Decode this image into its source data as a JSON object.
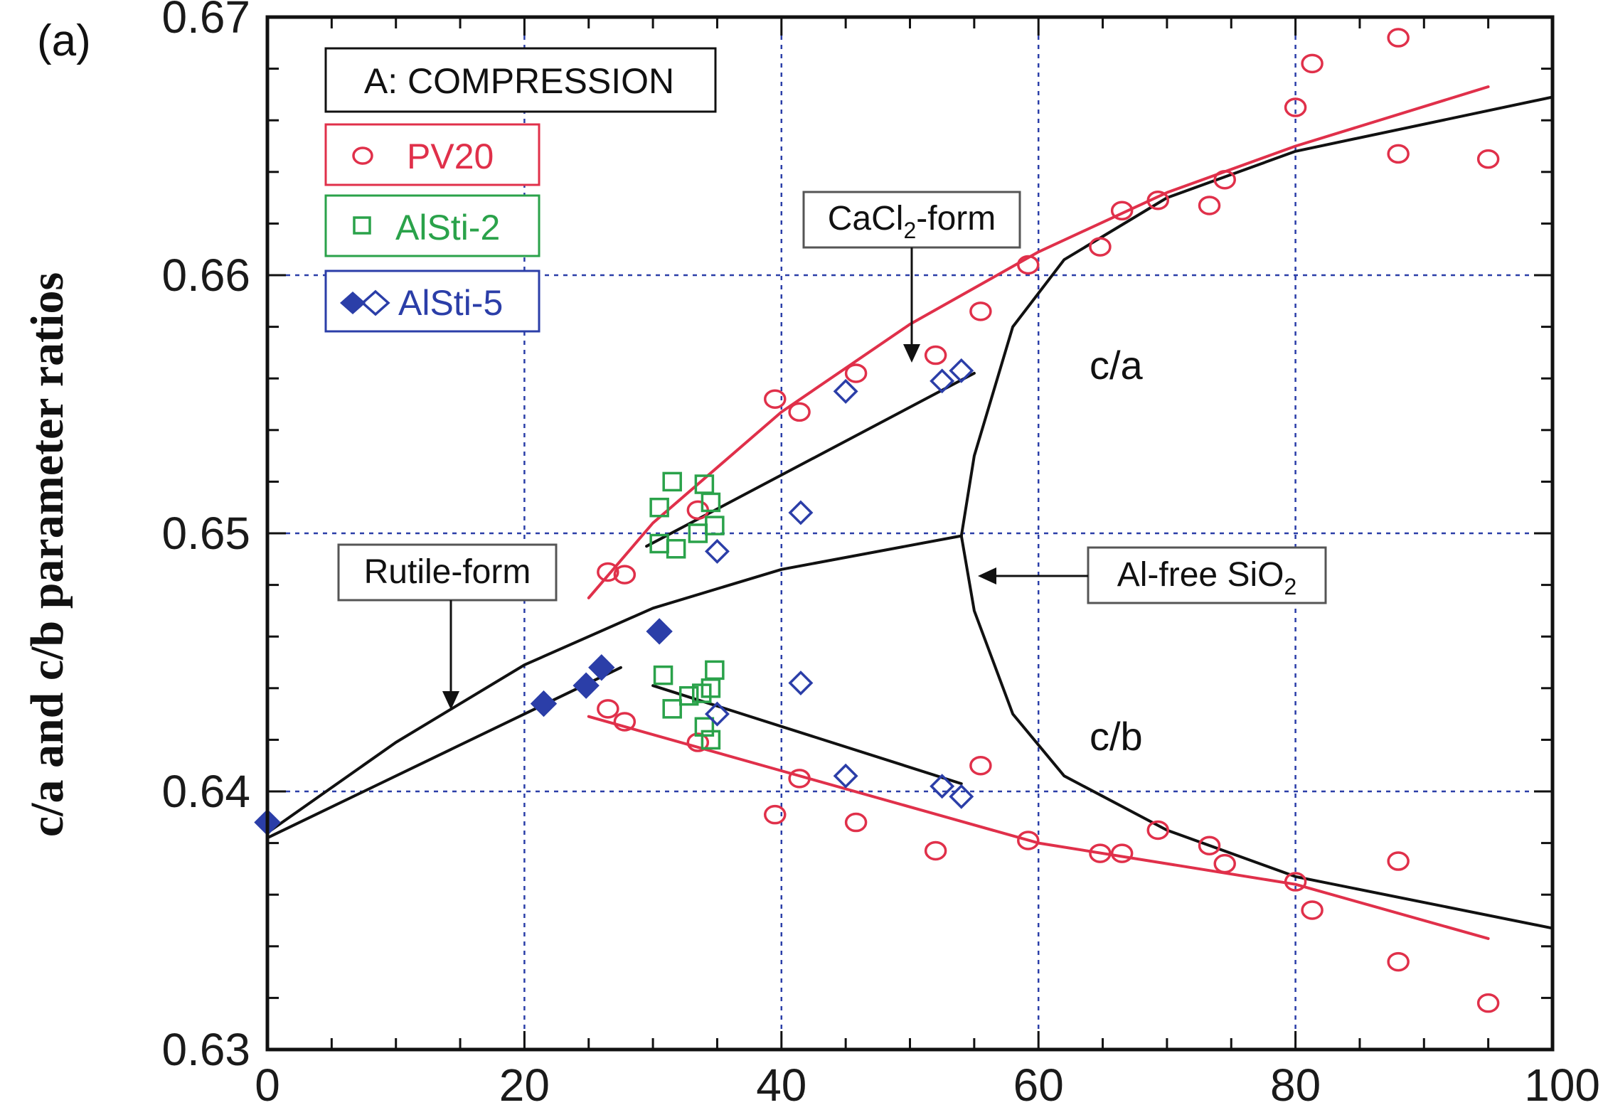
{
  "panel_label": "(a)",
  "chart_data": {
    "type": "scatter",
    "xlim": [
      0,
      100
    ],
    "ylim": [
      0.63,
      0.67
    ],
    "x_ticks": [
      "0",
      "20",
      "40",
      "60",
      "80",
      "100"
    ],
    "y_ticks": [
      "0.63",
      "0.64",
      "0.65",
      "0.66",
      "0.67"
    ],
    "xlabel": "",
    "ylabel": "c/a and c/b parameter ratios",
    "grid": true,
    "legend_position": "top-left",
    "legend_title": "A: COMPRESSION",
    "colors": {
      "PV20": "#e0304a",
      "AlSti-2": "#2aa24a",
      "AlSti-5": "#2b3ea8",
      "model": "#111111",
      "grid": "#2b3ea8"
    },
    "series": [
      {
        "name": "PV20",
        "marker": "circle-open",
        "points": [
          [
            26.5,
            0.6485
          ],
          [
            27.8,
            0.6484
          ],
          [
            33.5,
            0.6509
          ],
          [
            39.5,
            0.6552
          ],
          [
            41.4,
            0.6547
          ],
          [
            45.8,
            0.6562
          ],
          [
            52.0,
            0.6569
          ],
          [
            55.5,
            0.6586
          ],
          [
            59.2,
            0.6604
          ],
          [
            64.8,
            0.6611
          ],
          [
            66.5,
            0.6625
          ],
          [
            69.3,
            0.6629
          ],
          [
            73.3,
            0.6627
          ],
          [
            74.5,
            0.6637
          ],
          [
            80.0,
            0.6665
          ],
          [
            81.3,
            0.6682
          ],
          [
            88.0,
            0.6692
          ],
          [
            88.0,
            0.6647
          ],
          [
            95.0,
            0.6645
          ],
          [
            26.5,
            0.6432
          ],
          [
            27.8,
            0.6427
          ],
          [
            33.5,
            0.6419
          ],
          [
            39.5,
            0.6391
          ],
          [
            41.4,
            0.6405
          ],
          [
            45.8,
            0.6388
          ],
          [
            52.0,
            0.6377
          ],
          [
            55.5,
            0.641
          ],
          [
            59.2,
            0.6381
          ],
          [
            64.8,
            0.6376
          ],
          [
            66.5,
            0.6376
          ],
          [
            69.3,
            0.6385
          ],
          [
            73.3,
            0.6379
          ],
          [
            74.5,
            0.6372
          ],
          [
            80.0,
            0.6365
          ],
          [
            81.3,
            0.6354
          ],
          [
            88.0,
            0.6373
          ],
          [
            88.0,
            0.6334
          ],
          [
            95.0,
            0.6318
          ]
        ]
      },
      {
        "name": "AlSti-2",
        "marker": "square-open",
        "points": [
          [
            30.5,
            0.651
          ],
          [
            31.5,
            0.652
          ],
          [
            34.0,
            0.6519
          ],
          [
            34.5,
            0.6512
          ],
          [
            30.5,
            0.6496
          ],
          [
            31.8,
            0.6494
          ],
          [
            33.5,
            0.65
          ],
          [
            34.8,
            0.6503
          ],
          [
            30.8,
            0.6445
          ],
          [
            31.5,
            0.6432
          ],
          [
            32.8,
            0.6437
          ],
          [
            33.8,
            0.6438
          ],
          [
            34.8,
            0.6447
          ],
          [
            34.5,
            0.644
          ],
          [
            34.0,
            0.6425
          ],
          [
            34.5,
            0.642
          ]
        ]
      },
      {
        "name": "AlSti-5",
        "marker": "diamond",
        "points": [
          [
            0.0,
            0.6388,
            "filled"
          ],
          [
            21.5,
            0.6434,
            "filled"
          ],
          [
            24.8,
            0.6441,
            "filled"
          ],
          [
            26.0,
            0.6448,
            "filled"
          ],
          [
            30.5,
            0.6462,
            "filled"
          ],
          [
            35.0,
            0.6493,
            "open"
          ],
          [
            41.5,
            0.6508,
            "open"
          ],
          [
            45.0,
            0.6555,
            "open"
          ],
          [
            52.5,
            0.6559,
            "open"
          ],
          [
            54.0,
            0.6563,
            "open"
          ],
          [
            35.0,
            0.643,
            "open"
          ],
          [
            41.5,
            0.6442,
            "open"
          ],
          [
            45.0,
            0.6406,
            "open"
          ],
          [
            52.5,
            0.6402,
            "open"
          ],
          [
            54.0,
            0.6398,
            "open"
          ]
        ]
      }
    ],
    "fit_lines": [
      {
        "name": "PV20 c/a fit",
        "color": "#e0304a",
        "points": [
          [
            25.0,
            0.6475
          ],
          [
            30.0,
            0.6504
          ],
          [
            40.0,
            0.6547
          ],
          [
            50.0,
            0.6581
          ],
          [
            60.0,
            0.6609
          ],
          [
            70.0,
            0.6632
          ],
          [
            80.0,
            0.665
          ],
          [
            95.0,
            0.6673
          ]
        ]
      },
      {
        "name": "PV20 c/b fit",
        "color": "#e0304a",
        "points": [
          [
            25.0,
            0.6429
          ],
          [
            40.0,
            0.6408
          ],
          [
            60.0,
            0.638
          ],
          [
            80.0,
            0.6364
          ],
          [
            95.0,
            0.6343
          ]
        ]
      },
      {
        "name": "AlSti-5 c/a fit",
        "color": "#111111",
        "points": [
          [
            29.5,
            0.6495
          ],
          [
            55.0,
            0.6562
          ]
        ]
      },
      {
        "name": "AlSti-5 c/b fit",
        "color": "#111111",
        "points": [
          [
            30.0,
            0.6441
          ],
          [
            54.0,
            0.6403
          ]
        ]
      },
      {
        "name": "AlSti-5 rutile fit",
        "color": "#111111",
        "points": [
          [
            0.0,
            0.6382
          ],
          [
            27.5,
            0.6448
          ]
        ]
      },
      {
        "name": "Al-free rutile",
        "color": "#111111",
        "points": [
          [
            0.0,
            0.6384
          ],
          [
            10.0,
            0.6419
          ],
          [
            20.0,
            0.6449
          ],
          [
            30.0,
            0.6471
          ],
          [
            40.0,
            0.6486
          ],
          [
            54.0,
            0.6499
          ]
        ]
      },
      {
        "name": "Al-free c/a",
        "color": "#111111",
        "points": [
          [
            54.0,
            0.6499
          ],
          [
            55.0,
            0.653
          ],
          [
            58.0,
            0.658
          ],
          [
            62.0,
            0.6606
          ],
          [
            70.0,
            0.663
          ],
          [
            80.0,
            0.6648
          ],
          [
            100.0,
            0.6669
          ]
        ]
      },
      {
        "name": "Al-free c/b",
        "color": "#111111",
        "points": [
          [
            54.0,
            0.6499
          ],
          [
            55.0,
            0.647
          ],
          [
            58.0,
            0.643
          ],
          [
            62.0,
            0.6406
          ],
          [
            70.0,
            0.6385
          ],
          [
            80.0,
            0.6367
          ],
          [
            100.0,
            0.6347
          ]
        ]
      }
    ],
    "annotations": {
      "cacl2": {
        "base": "CaCl",
        "sub": "2",
        "rest": "-form"
      },
      "rutile": "Rutile-form",
      "alfree": {
        "base": "Al-free SiO",
        "sub": "2"
      },
      "ca": "c/a",
      "cb": "c/b"
    }
  }
}
